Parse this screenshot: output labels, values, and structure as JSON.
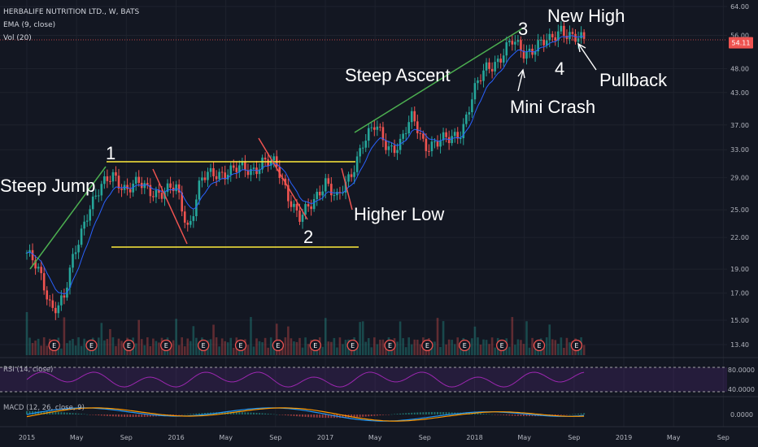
{
  "header": {
    "symbol_line": "HERBALIFE NUTRITION LTD., W, BATS",
    "ema_line": "EMA (9, close)",
    "vol_line": "Vol (20)"
  },
  "panes": {
    "rsi_label": "RSI (14, close)",
    "macd_label": "MACD (12, 26, close, 9)"
  },
  "colors": {
    "background": "#131722",
    "up": "#26a69a",
    "down": "#ef5350",
    "ema": "#2962ff",
    "annotation_yellow": "#ffeb3b",
    "annotation_green": "#4caf50",
    "annotation_red": "#ef5350",
    "earnings_circle": "#ef5350",
    "rsi_line": "#9c27b0",
    "macd_line": "#2196f3",
    "signal_line": "#ff9800"
  },
  "chart_data": {
    "type": "candlestick",
    "title": "HERBALIFE NUTRITION LTD., W, BATS",
    "last_price": "54.11",
    "price_scale": "log",
    "y_ticks": [
      "64.00",
      "56.00",
      "54.11",
      "48.00",
      "43.00",
      "37.00",
      "33.00",
      "29.00",
      "25.00",
      "22.00",
      "19.00",
      "17.00",
      "15.00",
      "13.40"
    ],
    "x_ticks": [
      "2015",
      "May",
      "Sep",
      "2016",
      "May",
      "Sep",
      "2017",
      "May",
      "Sep",
      "2018",
      "May",
      "Sep",
      "2019",
      "May",
      "Sep"
    ],
    "rsi_ticks": [
      "80.0000",
      "40.0000"
    ],
    "macd_ticks": [
      "0.0000"
    ],
    "price_path": [
      [
        "2015-01",
        20.5
      ],
      [
        "2015-02",
        18.5
      ],
      [
        "2015-03",
        16.0
      ],
      [
        "2015-04",
        16.5
      ],
      [
        "2015-05",
        21.0
      ],
      [
        "2015-06",
        25.5
      ],
      [
        "2015-07",
        27.5
      ],
      [
        "2015-08",
        29.5
      ],
      [
        "2015-09",
        27.5
      ],
      [
        "2015-10",
        28.0
      ],
      [
        "2015-11",
        27.5
      ],
      [
        "2015-12",
        27.0
      ],
      [
        "2016-01",
        27.5
      ],
      [
        "2016-02",
        23.0
      ],
      [
        "2016-03",
        28.5
      ],
      [
        "2016-04",
        29.5
      ],
      [
        "2016-05",
        30.0
      ],
      [
        "2016-06",
        30.0
      ],
      [
        "2016-07",
        30.0
      ],
      [
        "2016-08",
        31.5
      ],
      [
        "2016-09",
        30.5
      ],
      [
        "2016-10",
        27.0
      ],
      [
        "2016-11",
        24.0
      ],
      [
        "2016-12",
        25.5
      ],
      [
        "2017-01",
        29.0
      ],
      [
        "2017-02",
        26.0
      ],
      [
        "2017-03",
        29.0
      ],
      [
        "2017-04",
        34.5
      ],
      [
        "2017-05",
        36.5
      ],
      [
        "2017-06",
        33.5
      ],
      [
        "2017-07",
        34.0
      ],
      [
        "2017-08",
        38.0
      ],
      [
        "2017-09",
        34.0
      ],
      [
        "2017-10",
        34.0
      ],
      [
        "2017-11",
        34.5
      ],
      [
        "2017-12",
        36.5
      ],
      [
        "2018-01",
        43.0
      ],
      [
        "2018-02",
        48.5
      ],
      [
        "2018-03",
        50.5
      ],
      [
        "2018-04",
        54.0
      ],
      [
        "2018-05",
        52.0
      ],
      [
        "2018-06",
        53.5
      ],
      [
        "2018-07",
        54.0
      ],
      [
        "2018-08",
        58.5
      ],
      [
        "2018-09",
        55.0
      ],
      [
        "2018-10",
        54.0
      ]
    ],
    "earnings_markers": [
      "E",
      "E",
      "E",
      "E",
      "E",
      "E",
      "E",
      "E",
      "E",
      "E",
      "E",
      "E",
      "E",
      "E",
      "E"
    ],
    "annotations": {
      "steep_jump": "Steep Jump",
      "steep_ascent": "Steep Ascent",
      "new_high": "New High",
      "higher_low": "Higher Low",
      "mini_crash": "Mini Crash",
      "pullback": "Pullback",
      "n1": "1",
      "n2": "2",
      "n3": "3",
      "n4": "4"
    }
  }
}
